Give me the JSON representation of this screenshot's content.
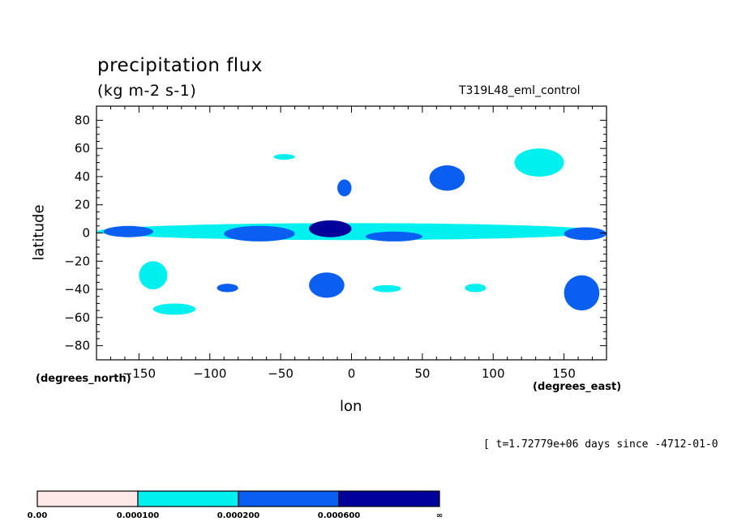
{
  "chart_data": {
    "type": "heatmap",
    "title": "precipitation flux",
    "units": "(kg m-2 s-1)",
    "run_label": "T319L48_eml_control",
    "xlabel": "lon",
    "ylabel": "latitude",
    "x_units_note": "(degrees_east)",
    "y_units_note": "(degrees_north)",
    "time_label": "[ t=1.72779e+06 days since -4712-01-0",
    "xlim": [
      -180,
      180
    ],
    "ylim": [
      -90,
      90
    ],
    "xticks": [
      -150,
      -100,
      -50,
      0,
      50,
      100,
      150
    ],
    "yticks": [
      80,
      60,
      40,
      20,
      0,
      -20,
      -40,
      -60,
      -80
    ],
    "legend": {
      "levels": [
        "0.00",
        "0.000100",
        "0.000200",
        "0.000600",
        "∞"
      ],
      "colors": [
        "#ffe8e8",
        "#00f0f0",
        "#0a5ef0",
        "#00009a"
      ]
    },
    "features": [
      {
        "lon": [
          -180,
          178
        ],
        "lat": [
          -5,
          7
        ],
        "level": 1
      },
      {
        "lon": [
          -175,
          -140
        ],
        "lat": [
          -3,
          5
        ],
        "level": 2
      },
      {
        "lon": [
          -90,
          -40
        ],
        "lat": [
          -6,
          5
        ],
        "level": 2
      },
      {
        "lon": [
          -30,
          0
        ],
        "lat": [
          -3,
          9
        ],
        "level": 3
      },
      {
        "lon": [
          10,
          50
        ],
        "lat": [
          -6,
          1
        ],
        "level": 2
      },
      {
        "lon": [
          150,
          180
        ],
        "lat": [
          -5,
          4
        ],
        "level": 2
      },
      {
        "lon": [
          -150,
          -130
        ],
        "lat": [
          -40,
          -20
        ],
        "level": 1
      },
      {
        "lon": [
          -140,
          -110
        ],
        "lat": [
          -58,
          -50
        ],
        "level": 1
      },
      {
        "lon": [
          -95,
          -80
        ],
        "lat": [
          -42,
          -36
        ],
        "level": 2
      },
      {
        "lon": [
          -30,
          -5
        ],
        "lat": [
          -46,
          -28
        ],
        "level": 2
      },
      {
        "lon": [
          15,
          35
        ],
        "lat": [
          -42,
          -37
        ],
        "level": 1
      },
      {
        "lon": [
          80,
          95
        ],
        "lat": [
          -42,
          -36
        ],
        "level": 1
      },
      {
        "lon": [
          150,
          175
        ],
        "lat": [
          -55,
          -30
        ],
        "level": 2
      },
      {
        "lon": [
          55,
          80
        ],
        "lat": [
          30,
          48
        ],
        "level": 2
      },
      {
        "lon": [
          -10,
          0
        ],
        "lat": [
          26,
          38
        ],
        "level": 2
      },
      {
        "lon": [
          115,
          150
        ],
        "lat": [
          40,
          60
        ],
        "level": 1
      },
      {
        "lon": [
          -55,
          -40
        ],
        "lat": [
          52,
          56
        ],
        "level": 1
      }
    ]
  }
}
